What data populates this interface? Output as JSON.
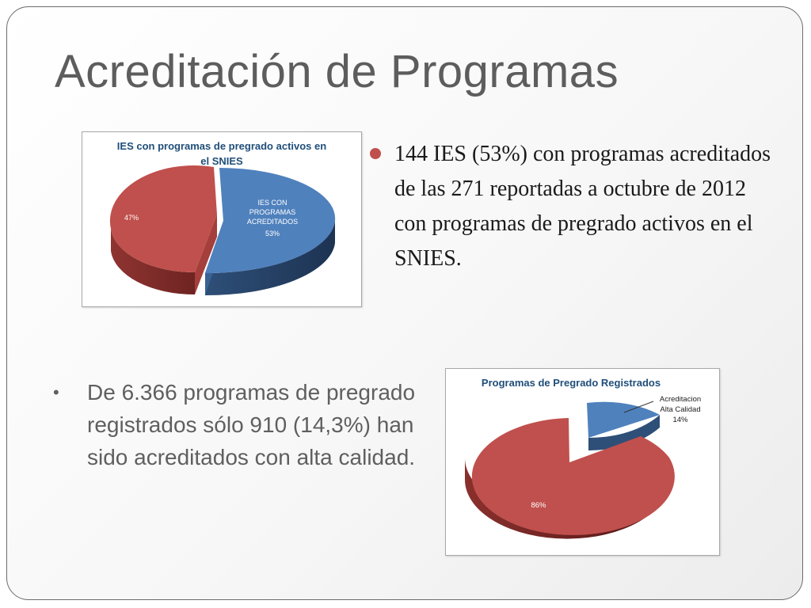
{
  "slide": {
    "title": "Acreditación de Programas",
    "bullet1": "144 IES (53%) con programas acreditados de las 271 reportadas a octubre de 2012 con programas de pregrado activos en el SNIES.",
    "bullet2_marker": "•",
    "bullet2": "De 6.366 programas de pregrado registrados sólo 910 (14,3%) han sido acreditados con alta calidad."
  },
  "colors": {
    "blue": "#4f81bd",
    "red": "#c0504d",
    "title": "#5d5d5d",
    "chart_title": "#1f4e79"
  },
  "chart_data": [
    {
      "type": "pie",
      "title": "IES con programas de pregrado activos en el SNIES",
      "slices": [
        {
          "label": "IES CON PROGRAMAS ACREDITADOS",
          "value": 53,
          "value_label": "53%",
          "color": "#4f81bd"
        },
        {
          "label": "",
          "value": 47,
          "value_label": "47%",
          "color": "#c0504d"
        }
      ]
    },
    {
      "type": "pie",
      "title": "Programas de Pregrado Registrados",
      "slices": [
        {
          "label": "Acreditacion Alta Calidad",
          "value": 14,
          "value_label": "14%",
          "color": "#4f81bd"
        },
        {
          "label": "",
          "value": 86,
          "value_label": "86%",
          "color": "#c0504d"
        }
      ]
    }
  ]
}
